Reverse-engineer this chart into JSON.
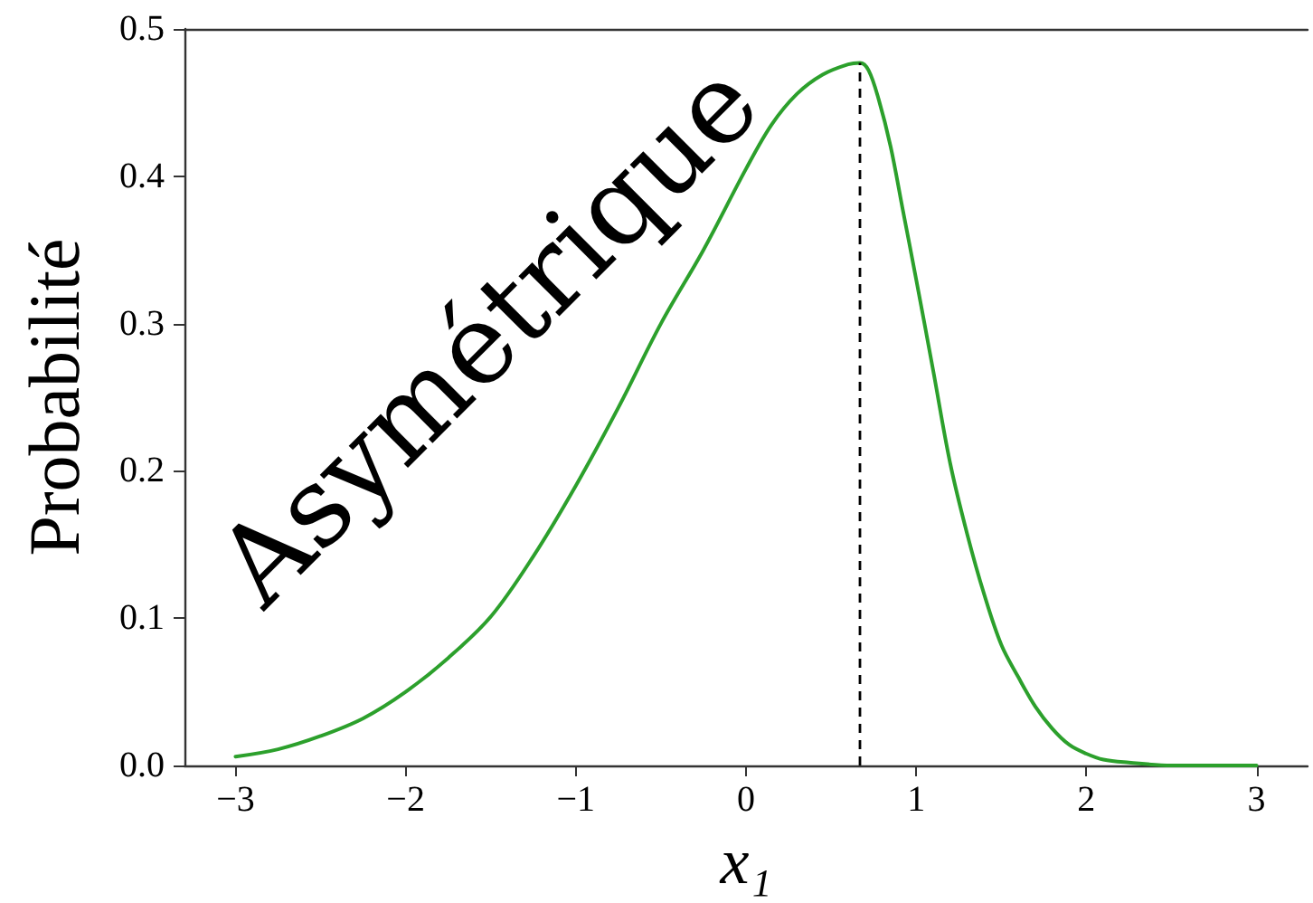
{
  "chart_data": {
    "type": "line",
    "xlabel": "x₁",
    "ylabel": "Probabilité",
    "annotations": [
      "Asymétrique"
    ],
    "x": [
      -3.0,
      -2.75,
      -2.5,
      -2.25,
      -2.0,
      -1.75,
      -1.5,
      -1.25,
      -1.0,
      -0.75,
      -0.5,
      -0.25,
      0.0,
      0.15,
      0.3,
      0.45,
      0.6,
      0.67,
      0.72,
      0.78,
      0.85,
      0.92,
      1.0,
      1.1,
      1.2,
      1.3,
      1.4,
      1.5,
      1.6,
      1.7,
      1.8,
      1.9,
      2.0,
      2.1,
      2.25,
      2.5,
      3.0
    ],
    "series": [
      {
        "color": "#2ca02c",
        "values": [
          0.006,
          0.011,
          0.02,
          0.032,
          0.05,
          0.073,
          0.101,
          0.142,
          0.19,
          0.243,
          0.3,
          0.35,
          0.405,
          0.435,
          0.456,
          0.469,
          0.476,
          0.477,
          0.472,
          0.452,
          0.42,
          0.378,
          0.33,
          0.268,
          0.205,
          0.157,
          0.116,
          0.082,
          0.06,
          0.04,
          0.025,
          0.014,
          0.008,
          0.004,
          0.002,
          0.0,
          0.0
        ]
      }
    ],
    "xlim": [
      -3.3,
      3.3
    ],
    "ylim": [
      0,
      0.5
    ],
    "xticks": [
      {
        "value": -3,
        "label": "−3"
      },
      {
        "value": -2,
        "label": "−2"
      },
      {
        "value": -1,
        "label": "−1"
      },
      0,
      1,
      2,
      3
    ],
    "yticks": [
      {
        "value": 0,
        "label": "0.0"
      },
      0.1,
      0.2,
      0.3,
      0.4,
      0.5
    ],
    "ref_lines": [
      {
        "axis": "x",
        "value": 0.67,
        "color": "#000000",
        "line_style": "dashed"
      }
    ],
    "grid": false,
    "marker": "none",
    "line_style": "solid"
  }
}
